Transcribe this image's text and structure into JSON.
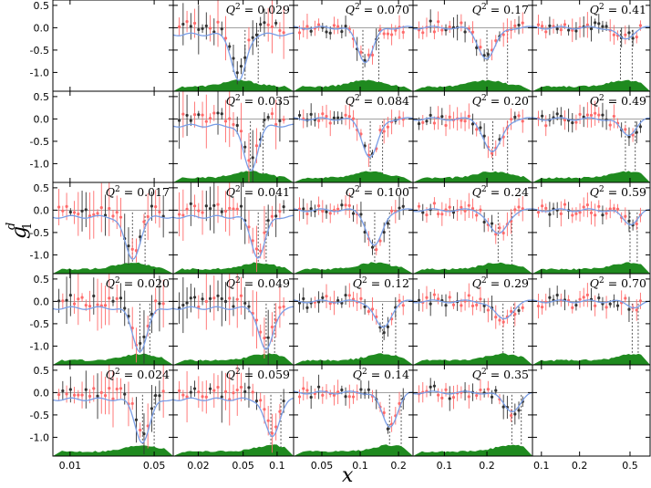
{
  "figure": {
    "ylabel": "g",
    "ylabel_sup": "d",
    "ylabel_sub": "1",
    "xlabel": "x"
  },
  "colors": {
    "fit_curve": "#7a9ee6",
    "data_red": "#ff6b6b",
    "data_black": "#333333",
    "band_green": "#1f8a1f",
    "zero_line": "#808080",
    "dotted": "#444444"
  },
  "y_ticks": [
    "0.5",
    "0.0",
    "-0.5",
    "-1.0"
  ],
  "column_x_ticks": [
    [
      "0.01",
      "0.05"
    ],
    [
      "0.02",
      "0.05",
      "0.1"
    ],
    [
      "0.05",
      "0.1",
      "0.2"
    ],
    [
      "0.1",
      "0.2"
    ],
    [
      "0.1",
      "0.2",
      "0.5"
    ]
  ],
  "chart_data": {
    "type": "scatter",
    "ylim": [
      -1.42,
      0.62
    ],
    "grid": false,
    "panels": [
      {
        "q2": "",
        "row": 0,
        "col": 0
      },
      {
        "q2": "0.029",
        "row": 0,
        "col": 1,
        "x_peak": 0.046,
        "depth": 1.05,
        "x_lines": [
          0.052,
          0.068
        ]
      },
      {
        "q2": "0.070",
        "row": 0,
        "col": 2,
        "x_peak": 0.11,
        "depth": 0.75,
        "x_lines": [
          0.105,
          0.14
        ]
      },
      {
        "q2": "0.17",
        "row": 0,
        "col": 3,
        "x_peak": 0.2,
        "depth": 0.68,
        "x_lines": [
          0.2,
          0.28
        ]
      },
      {
        "q2": "0.41",
        "row": 0,
        "col": 4,
        "x_peak": 0.45,
        "depth": 0.25,
        "x_lines": [
          0.42,
          0.52
        ]
      },
      {
        "q2": "",
        "row": 1,
        "col": 0
      },
      {
        "q2": "0.035",
        "row": 1,
        "col": 1,
        "x_peak": 0.058,
        "depth": 1.0,
        "x_lines": [
          0.058,
          0.075
        ]
      },
      {
        "q2": "0.084",
        "row": 1,
        "col": 2,
        "x_peak": 0.12,
        "depth": 0.85,
        "x_lines": [
          0.12,
          0.15
        ]
      },
      {
        "q2": "0.20",
        "row": 1,
        "col": 3,
        "x_peak": 0.22,
        "depth": 0.75,
        "x_lines": [
          0.22,
          0.28
        ]
      },
      {
        "q2": "0.49",
        "row": 1,
        "col": 4,
        "x_peak": 0.48,
        "depth": 0.35,
        "x_lines": [
          0.46,
          0.55
        ]
      },
      {
        "q2": "0.017",
        "row": 2,
        "col": 0,
        "x_peak": 0.033,
        "depth": 0.95,
        "x_lines": [
          0.033,
          0.042
        ]
      },
      {
        "q2": "0.041",
        "row": 2,
        "col": 1,
        "x_peak": 0.068,
        "depth": 0.9,
        "x_lines": [
          0.068,
          0.08
        ]
      },
      {
        "q2": "0.100",
        "row": 2,
        "col": 2,
        "x_peak": 0.13,
        "depth": 0.8,
        "x_lines": [
          0.13,
          0.17
        ]
      },
      {
        "q2": "0.24",
        "row": 2,
        "col": 3,
        "x_peak": 0.24,
        "depth": 0.55,
        "x_lines": [
          0.24,
          0.3
        ]
      },
      {
        "q2": "0.59",
        "row": 2,
        "col": 4,
        "x_peak": 0.5,
        "depth": 0.3,
        "x_lines": [
          0.5,
          0.57
        ]
      },
      {
        "q2": "0.020",
        "row": 3,
        "col": 0,
        "x_peak": 0.038,
        "depth": 0.95,
        "x_lines": [
          0.038,
          0.046
        ]
      },
      {
        "q2": "0.049",
        "row": 3,
        "col": 1,
        "x_peak": 0.08,
        "depth": 0.95,
        "x_lines": [
          0.08,
          0.095
        ]
      },
      {
        "q2": "0.12",
        "row": 3,
        "col": 2,
        "x_peak": 0.15,
        "depth": 0.6,
        "x_lines": [
          0.15,
          0.19
        ]
      },
      {
        "q2": "0.29",
        "row": 3,
        "col": 3,
        "x_peak": 0.26,
        "depth": 0.4,
        "x_lines": [
          0.26,
          0.31
        ]
      },
      {
        "q2": "0.70",
        "row": 3,
        "col": 4,
        "x_peak": 0.55,
        "depth": 0.12,
        "x_lines": [
          0.52,
          0.58
        ]
      },
      {
        "q2": "0.024",
        "row": 4,
        "col": 0,
        "x_peak": 0.04,
        "depth": 0.95,
        "x_lines": [
          0.04,
          0.05
        ]
      },
      {
        "q2": "0.059",
        "row": 4,
        "col": 1,
        "x_peak": 0.09,
        "depth": 0.85,
        "x_lines": [
          0.088,
          0.108
        ]
      },
      {
        "q2": "0.14",
        "row": 4,
        "col": 2,
        "x_peak": 0.17,
        "depth": 0.75,
        "x_lines": [
          0.17,
          0.21
        ]
      },
      {
        "q2": "0.35",
        "row": 4,
        "col": 3,
        "x_peak": 0.3,
        "depth": 0.4,
        "x_lines": [
          0.3,
          0.35
        ]
      },
      {
        "q2": "",
        "row": 4,
        "col": 4
      }
    ]
  }
}
